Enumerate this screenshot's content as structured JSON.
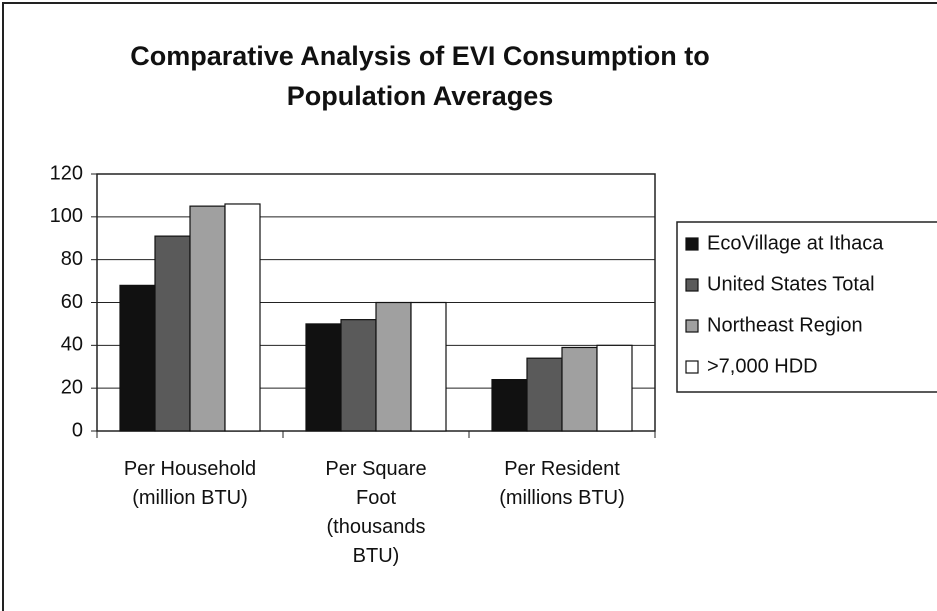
{
  "chart_data": {
    "type": "bar",
    "title": "Comparative Analysis of EVI Consumption to Population Averages",
    "categories": [
      "Per Household (million BTU)",
      "Per Square Foot (thousands BTU)",
      "Per Resident (millions BTU)"
    ],
    "series": [
      {
        "name": "EcoVillage at Ithaca",
        "color": "#111111",
        "values": [
          68,
          50,
          24
        ]
      },
      {
        "name": "United States Total",
        "color": "#5a5a5a",
        "values": [
          91,
          52,
          34
        ]
      },
      {
        "name": "Northeast Region",
        "color": "#a0a0a0",
        "values": [
          105,
          60,
          39
        ]
      },
      {
        "name": ">7,000 HDD",
        "color": "#ffffff",
        "values": [
          106,
          60,
          40
        ]
      }
    ],
    "ylim": [
      0,
      120
    ],
    "yticks": [
      0,
      20,
      40,
      60,
      80,
      100,
      120
    ],
    "grid": true,
    "legend": "right"
  }
}
